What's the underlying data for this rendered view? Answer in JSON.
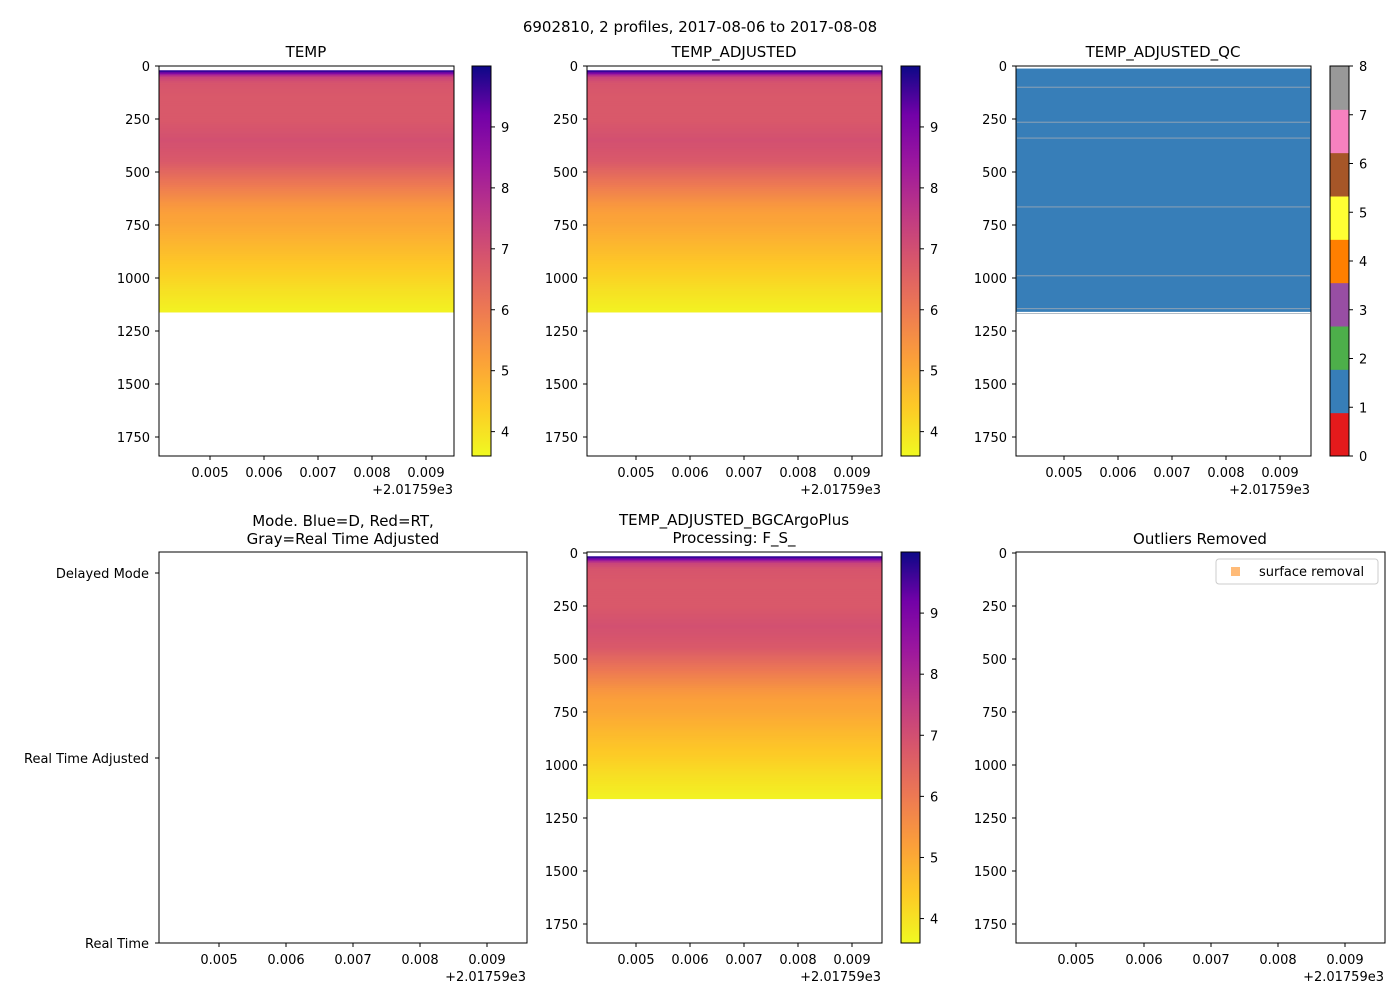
{
  "figure_title": "6902810, 2 profiles, 2017-08-06 to 2017-08-08",
  "chart_data": [
    {
      "type": "heatmap",
      "title": "TEMP",
      "x_ticks": [
        "0.005",
        "0.006",
        "0.007",
        "0.008",
        "0.009"
      ],
      "x_offset": "+2.01759e3",
      "y_ticks": [
        "0",
        "250",
        "500",
        "750",
        "1000",
        "1250",
        "1500",
        "1750"
      ],
      "ylim": [
        1840,
        0
      ],
      "data_depth_max": 1160,
      "colormap": "plasma_r",
      "colorbar": {
        "range": [
          3.6,
          10.0
        ],
        "ticks": [
          "4",
          "5",
          "6",
          "7",
          "8",
          "9"
        ]
      },
      "profile": [
        [
          20,
          9.8
        ],
        [
          25,
          9.5
        ],
        [
          30,
          9.0
        ],
        [
          35,
          8.3
        ],
        [
          40,
          7.8
        ],
        [
          50,
          6.9
        ],
        [
          80,
          6.5
        ],
        [
          150,
          6.4
        ],
        [
          250,
          6.4
        ],
        [
          350,
          6.6
        ],
        [
          450,
          6.4
        ],
        [
          500,
          6.1
        ],
        [
          550,
          5.8
        ],
        [
          600,
          5.5
        ],
        [
          650,
          5.2
        ],
        [
          700,
          5.0
        ],
        [
          750,
          4.9
        ],
        [
          850,
          4.6
        ],
        [
          950,
          4.3
        ],
        [
          1050,
          4.0
        ],
        [
          1160,
          3.7
        ]
      ]
    },
    {
      "type": "heatmap",
      "title": "TEMP_ADJUSTED",
      "x_ticks": [
        "0.005",
        "0.006",
        "0.007",
        "0.008",
        "0.009"
      ],
      "x_offset": "+2.01759e3",
      "y_ticks": [
        "0",
        "250",
        "500",
        "750",
        "1000",
        "1250",
        "1500",
        "1750"
      ],
      "ylim": [
        1840,
        0
      ],
      "data_depth_max": 1160,
      "colormap": "plasma_r",
      "colorbar": {
        "range": [
          3.6,
          10.0
        ],
        "ticks": [
          "4",
          "5",
          "6",
          "7",
          "8",
          "9"
        ]
      },
      "profile": [
        [
          20,
          9.8
        ],
        [
          25,
          9.5
        ],
        [
          30,
          9.0
        ],
        [
          35,
          8.3
        ],
        [
          40,
          7.8
        ],
        [
          50,
          6.9
        ],
        [
          80,
          6.5
        ],
        [
          150,
          6.4
        ],
        [
          250,
          6.4
        ],
        [
          350,
          6.6
        ],
        [
          450,
          6.4
        ],
        [
          500,
          6.1
        ],
        [
          550,
          5.8
        ],
        [
          600,
          5.5
        ],
        [
          650,
          5.2
        ],
        [
          700,
          5.0
        ],
        [
          750,
          4.9
        ],
        [
          850,
          4.6
        ],
        [
          950,
          4.3
        ],
        [
          1050,
          4.0
        ],
        [
          1160,
          3.7
        ]
      ]
    },
    {
      "type": "heatmap",
      "title": "TEMP_ADJUSTED_QC",
      "x_ticks": [
        "0.005",
        "0.006",
        "0.007",
        "0.008",
        "0.009"
      ],
      "x_offset": "+2.01759e3",
      "y_ticks": [
        "0",
        "250",
        "500",
        "750",
        "1000",
        "1250",
        "1500",
        "1750"
      ],
      "ylim": [
        1840,
        0
      ],
      "data_depth_max": 1160,
      "qc_value": 1,
      "qc_fill_color": "#377eb8",
      "gridline_depths": [
        100,
        265,
        340,
        665,
        990,
        1145
      ],
      "colorbar": {
        "range": [
          0,
          8
        ],
        "ticks": [
          "0",
          "1",
          "2",
          "3",
          "4",
          "5",
          "6",
          "7",
          "8"
        ],
        "colors": [
          "#e41a1c",
          "#377eb8",
          "#4daf4a",
          "#984ea3",
          "#ff7f00",
          "#ffff33",
          "#a65628",
          "#f781bf",
          "#999999"
        ]
      }
    },
    {
      "type": "scatter",
      "title_line1": "Mode. Blue=D, Red=RT,",
      "title_line2": "Gray=Real Time Adjusted",
      "x_ticks": [
        "0.005",
        "0.006",
        "0.007",
        "0.008",
        "0.009"
      ],
      "x_offset": "+2.01759e3",
      "y_categories": [
        "Delayed Mode",
        "Real Time Adjusted",
        "Real Time"
      ],
      "points": []
    },
    {
      "type": "heatmap",
      "title_line1": "TEMP_ADJUSTED_BGCArgoPlus",
      "title_line2": "Processing: F_S_",
      "x_ticks": [
        "0.005",
        "0.006",
        "0.007",
        "0.008",
        "0.009"
      ],
      "x_offset": "+2.01759e3",
      "y_ticks": [
        "0",
        "250",
        "500",
        "750",
        "1000",
        "1250",
        "1500",
        "1750"
      ],
      "ylim": [
        1840,
        0
      ],
      "data_depth_max": 1160,
      "colormap": "plasma_r",
      "colorbar": {
        "range": [
          3.6,
          10.0
        ],
        "ticks": [
          "4",
          "5",
          "6",
          "7",
          "8",
          "9"
        ]
      },
      "profile": [
        [
          20,
          9.8
        ],
        [
          25,
          9.5
        ],
        [
          30,
          9.0
        ],
        [
          35,
          8.3
        ],
        [
          40,
          7.8
        ],
        [
          50,
          6.9
        ],
        [
          80,
          6.5
        ],
        [
          150,
          6.4
        ],
        [
          250,
          6.4
        ],
        [
          350,
          6.6
        ],
        [
          450,
          6.4
        ],
        [
          500,
          6.1
        ],
        [
          550,
          5.8
        ],
        [
          600,
          5.5
        ],
        [
          650,
          5.2
        ],
        [
          700,
          5.0
        ],
        [
          750,
          4.9
        ],
        [
          850,
          4.6
        ],
        [
          950,
          4.3
        ],
        [
          1050,
          4.0
        ],
        [
          1160,
          3.7
        ]
      ]
    },
    {
      "type": "scatter",
      "title": "Outliers Removed",
      "x_ticks": [
        "0.005",
        "0.006",
        "0.007",
        "0.008",
        "0.009"
      ],
      "x_offset": "+2.01759e3",
      "y_ticks": [
        "0",
        "250",
        "500",
        "750",
        "1000",
        "1250",
        "1500",
        "1750"
      ],
      "ylim": [
        1840,
        0
      ],
      "legend": {
        "label": "surface removal",
        "color": "#ffbb78",
        "placement": "top-right"
      },
      "points": []
    }
  ]
}
